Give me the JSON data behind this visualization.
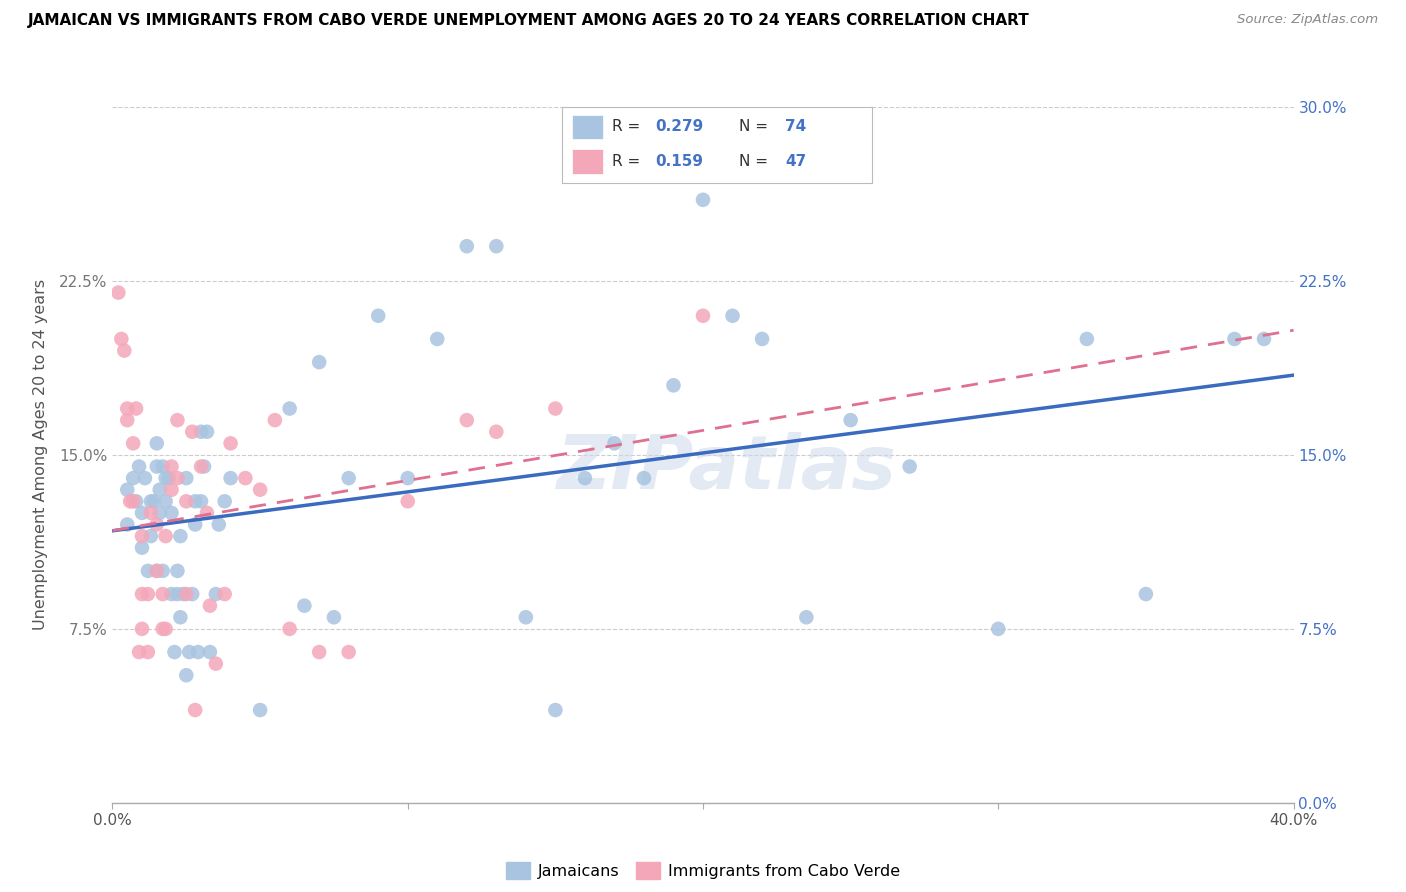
{
  "title": "JAMAICAN VS IMMIGRANTS FROM CABO VERDE UNEMPLOYMENT AMONG AGES 20 TO 24 YEARS CORRELATION CHART",
  "source": "Source: ZipAtlas.com",
  "ylabel": "Unemployment Among Ages 20 to 24 years",
  "xlim": [
    0.0,
    0.4
  ],
  "ylim": [
    0.0,
    0.3
  ],
  "watermark": "ZIPatlas",
  "jamaican_color": "#a8c4e0",
  "cabo_verde_color": "#f4a7b9",
  "line_blue": "#3a6bbf",
  "line_pink": "#e07090",
  "jamaicans_x": [
    0.005,
    0.005,
    0.007,
    0.008,
    0.009,
    0.01,
    0.01,
    0.011,
    0.012,
    0.013,
    0.013,
    0.014,
    0.015,
    0.015,
    0.015,
    0.016,
    0.016,
    0.017,
    0.017,
    0.018,
    0.018,
    0.019,
    0.02,
    0.02,
    0.021,
    0.022,
    0.022,
    0.023,
    0.023,
    0.024,
    0.025,
    0.025,
    0.026,
    0.027,
    0.028,
    0.028,
    0.029,
    0.03,
    0.03,
    0.031,
    0.032,
    0.033,
    0.035,
    0.036,
    0.038,
    0.04,
    0.05,
    0.06,
    0.065,
    0.07,
    0.075,
    0.08,
    0.09,
    0.1,
    0.11,
    0.12,
    0.13,
    0.14,
    0.15,
    0.16,
    0.17,
    0.18,
    0.19,
    0.2,
    0.21,
    0.22,
    0.235,
    0.25,
    0.27,
    0.3,
    0.33,
    0.35,
    0.38,
    0.39
  ],
  "jamaicans_y": [
    0.12,
    0.135,
    0.14,
    0.13,
    0.145,
    0.11,
    0.125,
    0.14,
    0.1,
    0.115,
    0.13,
    0.13,
    0.145,
    0.155,
    0.1,
    0.125,
    0.135,
    0.145,
    0.1,
    0.13,
    0.14,
    0.14,
    0.09,
    0.125,
    0.065,
    0.09,
    0.1,
    0.115,
    0.08,
    0.09,
    0.14,
    0.055,
    0.065,
    0.09,
    0.12,
    0.13,
    0.065,
    0.16,
    0.13,
    0.145,
    0.16,
    0.065,
    0.09,
    0.12,
    0.13,
    0.14,
    0.04,
    0.17,
    0.085,
    0.19,
    0.08,
    0.14,
    0.21,
    0.14,
    0.2,
    0.24,
    0.24,
    0.08,
    0.04,
    0.14,
    0.155,
    0.14,
    0.18,
    0.26,
    0.21,
    0.2,
    0.08,
    0.165,
    0.145,
    0.075,
    0.2,
    0.09,
    0.2,
    0.2
  ],
  "cabo_verde_x": [
    0.002,
    0.003,
    0.004,
    0.005,
    0.005,
    0.006,
    0.007,
    0.007,
    0.008,
    0.009,
    0.01,
    0.01,
    0.01,
    0.012,
    0.012,
    0.013,
    0.015,
    0.015,
    0.017,
    0.017,
    0.018,
    0.018,
    0.02,
    0.02,
    0.022,
    0.022,
    0.025,
    0.025,
    0.027,
    0.028,
    0.03,
    0.032,
    0.033,
    0.035,
    0.038,
    0.04,
    0.045,
    0.05,
    0.055,
    0.06,
    0.07,
    0.08,
    0.1,
    0.12,
    0.13,
    0.15,
    0.2
  ],
  "cabo_verde_y": [
    0.22,
    0.2,
    0.195,
    0.165,
    0.17,
    0.13,
    0.13,
    0.155,
    0.17,
    0.065,
    0.075,
    0.09,
    0.115,
    0.065,
    0.09,
    0.125,
    0.1,
    0.12,
    0.075,
    0.09,
    0.075,
    0.115,
    0.135,
    0.145,
    0.14,
    0.165,
    0.09,
    0.13,
    0.16,
    0.04,
    0.145,
    0.125,
    0.085,
    0.06,
    0.09,
    0.155,
    0.14,
    0.135,
    0.165,
    0.075,
    0.065,
    0.065,
    0.13,
    0.165,
    0.16,
    0.17,
    0.21
  ],
  "xtick_positions": [
    0.0,
    0.1,
    0.2,
    0.3,
    0.4
  ],
  "xtick_labels": [
    "0.0%",
    "",
    "",
    "",
    "40.0%"
  ],
  "ytick_positions": [
    0.0,
    0.075,
    0.15,
    0.225,
    0.3
  ],
  "ytick_labels_left": [
    "",
    "7.5%",
    "15.0%",
    "22.5%",
    ""
  ],
  "ytick_labels_right": [
    "0.0%",
    "7.5%",
    "15.0%",
    "22.5%",
    "30.0%"
  ]
}
